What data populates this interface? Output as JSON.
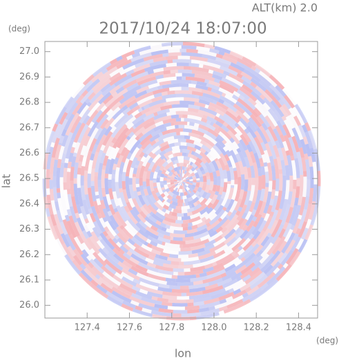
{
  "chart_data": {
    "type": "radar-ppi",
    "title": "2017/10/24 18:07:00",
    "subtitle": "ALT(km) 2.0",
    "x_label": "lon",
    "y_label": "lat",
    "x_unit": "(deg)",
    "y_unit": "(deg)",
    "xlim": [
      127.2,
      128.49
    ],
    "ylim": [
      25.95,
      27.04
    ],
    "xticks": [
      127.4,
      127.6,
      127.8,
      {
        "value": 128.0,
        "label": "128.0"
      },
      128.2,
      128.4
    ],
    "yticks": [
      {
        "value": 26.0,
        "label": "26.0"
      },
      26.1,
      26.2,
      26.3,
      26.4,
      26.5,
      26.6,
      26.7,
      26.8,
      26.9,
      {
        "value": 27.0,
        "label": "27.0"
      }
    ]
  }
}
